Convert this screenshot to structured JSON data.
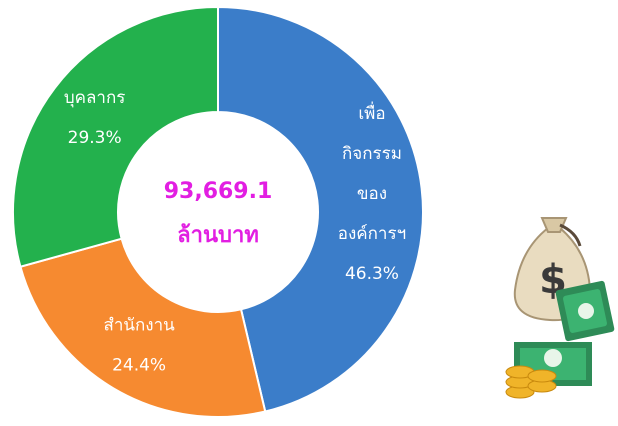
{
  "chart_data": {
    "type": "donut",
    "categories": [
      "เพื่อ กิจกรรม ของ องค์การฯ",
      "สำนักงาน",
      "บุคลากร"
    ],
    "values": [
      46.3,
      24.4,
      29.3
    ],
    "value_labels": [
      "46.3%",
      "24.4%",
      "29.3%"
    ],
    "colors": [
      "#3b7dc9",
      "#f68a30",
      "#23b14d"
    ],
    "annotations": [
      "93,669.1",
      "ล้านบาท"
    ]
  }
}
